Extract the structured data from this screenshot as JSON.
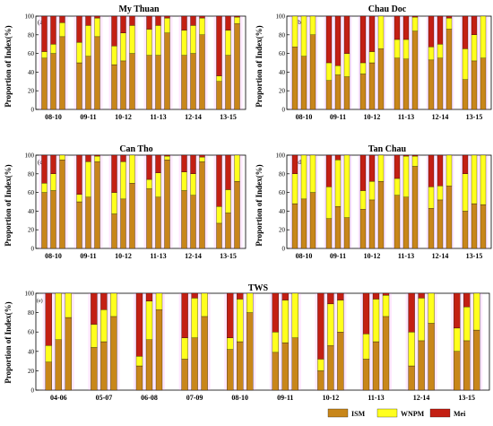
{
  "colors": {
    "ism": "#c8861a",
    "wnpm": "#ffff1e",
    "mei": "#c31f13",
    "outline": "#000000",
    "glow": "#ff80ff"
  },
  "legend": {
    "items": [
      {
        "label": "ISM",
        "key": "ism"
      },
      {
        "label": "WNPM",
        "key": "wnpm"
      },
      {
        "label": "Mei",
        "key": "mei"
      }
    ]
  },
  "chart_data": [
    {
      "type": "bar",
      "stacked": true,
      "panel_tag": "(a)",
      "title": "My Thuan",
      "ylabel": "Proportion of Index(%)",
      "ylim": [
        0,
        100
      ],
      "yticks": [
        0,
        20,
        40,
        60,
        80,
        100
      ],
      "categories": [
        "08-10",
        "09-11",
        "10-12",
        "11-13",
        "12-14",
        "13-15"
      ],
      "series": [
        {
          "name": "ISM",
          "key": "ism",
          "values": [
            [
              55,
              60,
              78
            ],
            [
              50,
              57,
              78
            ],
            [
              48,
              52,
              60
            ],
            [
              58,
              58,
              82
            ],
            [
              58,
              60,
              80
            ],
            [
              30,
              58,
              92
            ]
          ]
        },
        {
          "name": "WNPM",
          "key": "wnpm",
          "values": [
            [
              7,
              10,
              15
            ],
            [
              22,
              33,
              20
            ],
            [
              20,
              30,
              30
            ],
            [
              28,
              32,
              16
            ],
            [
              27,
              30,
              18
            ],
            [
              6,
              27,
              7
            ]
          ]
        },
        {
          "name": "Mei",
          "key": "mei",
          "values": [
            [
              38,
              30,
              7
            ],
            [
              28,
              10,
              2
            ],
            [
              32,
              18,
              10
            ],
            [
              14,
              10,
              2
            ],
            [
              15,
              10,
              2
            ],
            [
              64,
              15,
              1
            ]
          ]
        }
      ]
    },
    {
      "type": "bar",
      "stacked": true,
      "panel_tag": "(b)",
      "title": "Chau Doc",
      "ylabel": "Proportion of Index(%)",
      "ylim": [
        0,
        100
      ],
      "yticks": [
        0,
        20,
        40,
        60,
        80,
        100
      ],
      "categories": [
        "08-10",
        "09-11",
        "10-12",
        "11-13",
        "12-14",
        "13-15"
      ],
      "series": [
        {
          "name": "ISM",
          "key": "ism",
          "values": [
            [
              67,
              57,
              80
            ],
            [
              31,
              37,
              35
            ],
            [
              38,
              50,
              65
            ],
            [
              55,
              54,
              84
            ],
            [
              53,
              55,
              86
            ],
            [
              32,
              52,
              55
            ]
          ]
        },
        {
          "name": "WNPM",
          "key": "wnpm",
          "values": [
            [
              33,
              43,
              20
            ],
            [
              19,
              10,
              25
            ],
            [
              12,
              12,
              35
            ],
            [
              20,
              21,
              15
            ],
            [
              14,
              15,
              12
            ],
            [
              33,
              28,
              45
            ]
          ]
        },
        {
          "name": "Mei",
          "key": "mei",
          "values": [
            [
              0,
              0,
              0
            ],
            [
              50,
              53,
              40
            ],
            [
              50,
              38,
              0
            ],
            [
              25,
              25,
              1
            ],
            [
              33,
              30,
              2
            ],
            [
              35,
              20,
              0
            ]
          ]
        }
      ]
    },
    {
      "type": "bar",
      "stacked": true,
      "panel_tag": "(c)",
      "title": "Can Tho",
      "ylabel": "Proportion of Index(%)",
      "ylim": [
        0,
        100
      ],
      "yticks": [
        0,
        20,
        40,
        60,
        80,
        100
      ],
      "categories": [
        "08-10",
        "09-11",
        "10-12",
        "11-13",
        "12-14",
        "13-15"
      ],
      "series": [
        {
          "name": "ISM",
          "key": "ism",
          "values": [
            [
              60,
              62,
              95
            ],
            [
              50,
              55,
              93
            ],
            [
              37,
              53,
              70
            ],
            [
              64,
              55,
              95
            ],
            [
              62,
              57,
              93
            ],
            [
              27,
              38,
              72
            ]
          ]
        },
        {
          "name": "WNPM",
          "key": "wnpm",
          "values": [
            [
              10,
              18,
              5
            ],
            [
              8,
              38,
              6
            ],
            [
              23,
              40,
              30
            ],
            [
              10,
              26,
              4
            ],
            [
              20,
              23,
              5
            ],
            [
              18,
              25,
              28
            ]
          ]
        },
        {
          "name": "Mei",
          "key": "mei",
          "values": [
            [
              30,
              20,
              0
            ],
            [
              42,
              7,
              1
            ],
            [
              40,
              7,
              0
            ],
            [
              26,
              19,
              1
            ],
            [
              18,
              20,
              2
            ],
            [
              55,
              37,
              0
            ]
          ]
        }
      ]
    },
    {
      "type": "bar",
      "stacked": true,
      "panel_tag": "(d)",
      "title": "Tan Chau",
      "ylabel": "Proportion of Index(%)",
      "ylim": [
        0,
        100
      ],
      "yticks": [
        0,
        20,
        40,
        60,
        80,
        100
      ],
      "categories": [
        "08-10",
        "09-11",
        "10-12",
        "11-13",
        "12-14",
        "13-15"
      ],
      "series": [
        {
          "name": "ISM",
          "key": "ism",
          "values": [
            [
              48,
              53,
              60
            ],
            [
              32,
              45,
              33
            ],
            [
              42,
              52,
              72
            ],
            [
              57,
              55,
              88
            ],
            [
              43,
              52,
              67
            ],
            [
              40,
              48,
              47
            ]
          ]
        },
        {
          "name": "WNPM",
          "key": "wnpm",
          "values": [
            [
              32,
              47,
              40
            ],
            [
              34,
              50,
              67
            ],
            [
              20,
              20,
              28
            ],
            [
              18,
              44,
              11
            ],
            [
              23,
              15,
              33
            ],
            [
              40,
              52,
              53
            ]
          ]
        },
        {
          "name": "Mei",
          "key": "mei",
          "values": [
            [
              20,
              0,
              0
            ],
            [
              34,
              5,
              0
            ],
            [
              38,
              28,
              0
            ],
            [
              25,
              1,
              1
            ],
            [
              34,
              33,
              0
            ],
            [
              20,
              0,
              0
            ]
          ]
        }
      ]
    },
    {
      "type": "bar",
      "stacked": true,
      "panel_tag": "(e)",
      "title": "TWS",
      "ylabel": "Proportion of Index(%)",
      "ylim": [
        0,
        100
      ],
      "yticks": [
        0,
        20,
        40,
        60,
        80,
        100
      ],
      "categories": [
        "04-06",
        "05-07",
        "06-08",
        "07-09",
        "08-10",
        "09-11",
        "10-12",
        "11-13",
        "12-14",
        "13-15"
      ],
      "series": [
        {
          "name": "ISM",
          "key": "ism",
          "values": [
            [
              29,
              52,
              75
            ],
            [
              44,
              50,
              76
            ],
            [
              25,
              52,
              83
            ],
            [
              32,
              54,
              76
            ],
            [
              42,
              50,
              80
            ],
            [
              39,
              49,
              54
            ],
            [
              20,
              46,
              60
            ],
            [
              32,
              50,
              76
            ],
            [
              25,
              51,
              69
            ],
            [
              40,
              51,
              62
            ]
          ]
        },
        {
          "name": "WNPM",
          "key": "wnpm",
          "values": [
            [
              17,
              48,
              25
            ],
            [
              24,
              33,
              24
            ],
            [
              10,
              40,
              17
            ],
            [
              22,
              41,
              24
            ],
            [
              12,
              44,
              20
            ],
            [
              21,
              44,
              46
            ],
            [
              12,
              43,
              33
            ],
            [
              26,
              44,
              22
            ],
            [
              35,
              44,
              31
            ],
            [
              24,
              35,
              38
            ]
          ]
        },
        {
          "name": "Mei",
          "key": "mei",
          "values": [
            [
              54,
              0,
              0
            ],
            [
              32,
              17,
              0
            ],
            [
              65,
              8,
              0
            ],
            [
              46,
              5,
              0
            ],
            [
              46,
              6,
              0
            ],
            [
              40,
              7,
              0
            ],
            [
              68,
              11,
              7
            ],
            [
              42,
              6,
              2
            ],
            [
              40,
              5,
              0
            ],
            [
              36,
              14,
              0
            ]
          ]
        }
      ]
    }
  ]
}
